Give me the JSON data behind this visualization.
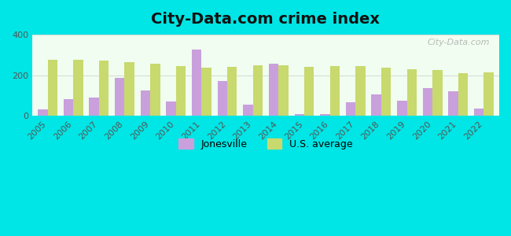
{
  "title": "City-Data.com crime index",
  "years": [
    2005,
    2006,
    2007,
    2008,
    2009,
    2010,
    2011,
    2012,
    2013,
    2014,
    2015,
    2016,
    2017,
    2018,
    2019,
    2020,
    2021,
    2022
  ],
  "jonesville": [
    30,
    80,
    90,
    185,
    125,
    70,
    325,
    170,
    55,
    255,
    10,
    10,
    65,
    105,
    75,
    135,
    120,
    35
  ],
  "us_average": [
    275,
    275,
    270,
    265,
    255,
    245,
    235,
    240,
    250,
    250,
    240,
    245,
    245,
    235,
    230,
    225,
    210,
    215
  ],
  "jonesville_color": "#c9a0dc",
  "us_average_color": "#c8d96e",
  "background_color": "#00e5e5",
  "ylim": [
    0,
    400
  ],
  "yticks": [
    0,
    200,
    400
  ],
  "bar_width": 0.38,
  "figsize": [
    6.5,
    3.0
  ],
  "dpi": 100,
  "title_fontsize": 14,
  "watermark": "City-Data.com",
  "legend_jonesville": "Jonesville",
  "legend_us": "U.S. average"
}
